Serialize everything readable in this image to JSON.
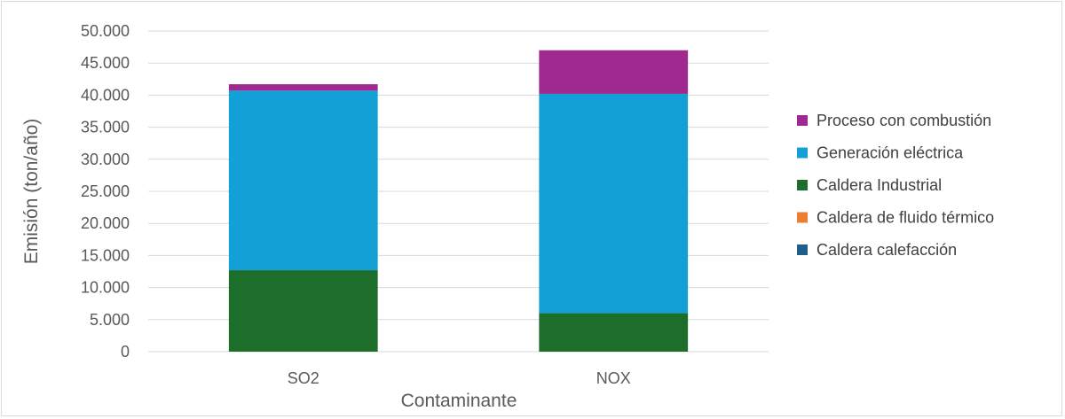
{
  "chart_data": {
    "type": "bar",
    "stacked": true,
    "title": "",
    "xlabel": "Contaminante",
    "ylabel": "Emisión (ton/año)",
    "categories": [
      "SO2",
      "NOX"
    ],
    "ylim": [
      0,
      50000
    ],
    "yticks": [
      0,
      5000,
      10000,
      15000,
      20000,
      25000,
      30000,
      35000,
      40000,
      45000,
      50000
    ],
    "ytick_labels": [
      "0",
      "5.000",
      "10.000",
      "15.000",
      "20.000",
      "25.000",
      "30.000",
      "35.000",
      "40.000",
      "45.000",
      "50.000"
    ],
    "grid": true,
    "legend_position": "right",
    "series": [
      {
        "name": "Caldera calefacción",
        "color": "#1f5f8b",
        "values": [
          0,
          0
        ]
      },
      {
        "name": "Caldera de fluido térmico",
        "color": "#ed7d31",
        "values": [
          0,
          0
        ]
      },
      {
        "name": "Caldera Industrial",
        "color": "#1c6e2a",
        "values": [
          12700,
          6000
        ]
      },
      {
        "name": "Generación eléctrica",
        "color": "#12a0d7",
        "values": [
          28000,
          34200
        ]
      },
      {
        "name": "Proceso con combustión",
        "color": "#a0298f",
        "values": [
          1000,
          6800
        ]
      }
    ],
    "legend_order": [
      "Proceso con combustión",
      "Generación eléctrica",
      "Caldera Industrial",
      "Caldera de fluido térmico",
      "Caldera calefacción"
    ]
  }
}
